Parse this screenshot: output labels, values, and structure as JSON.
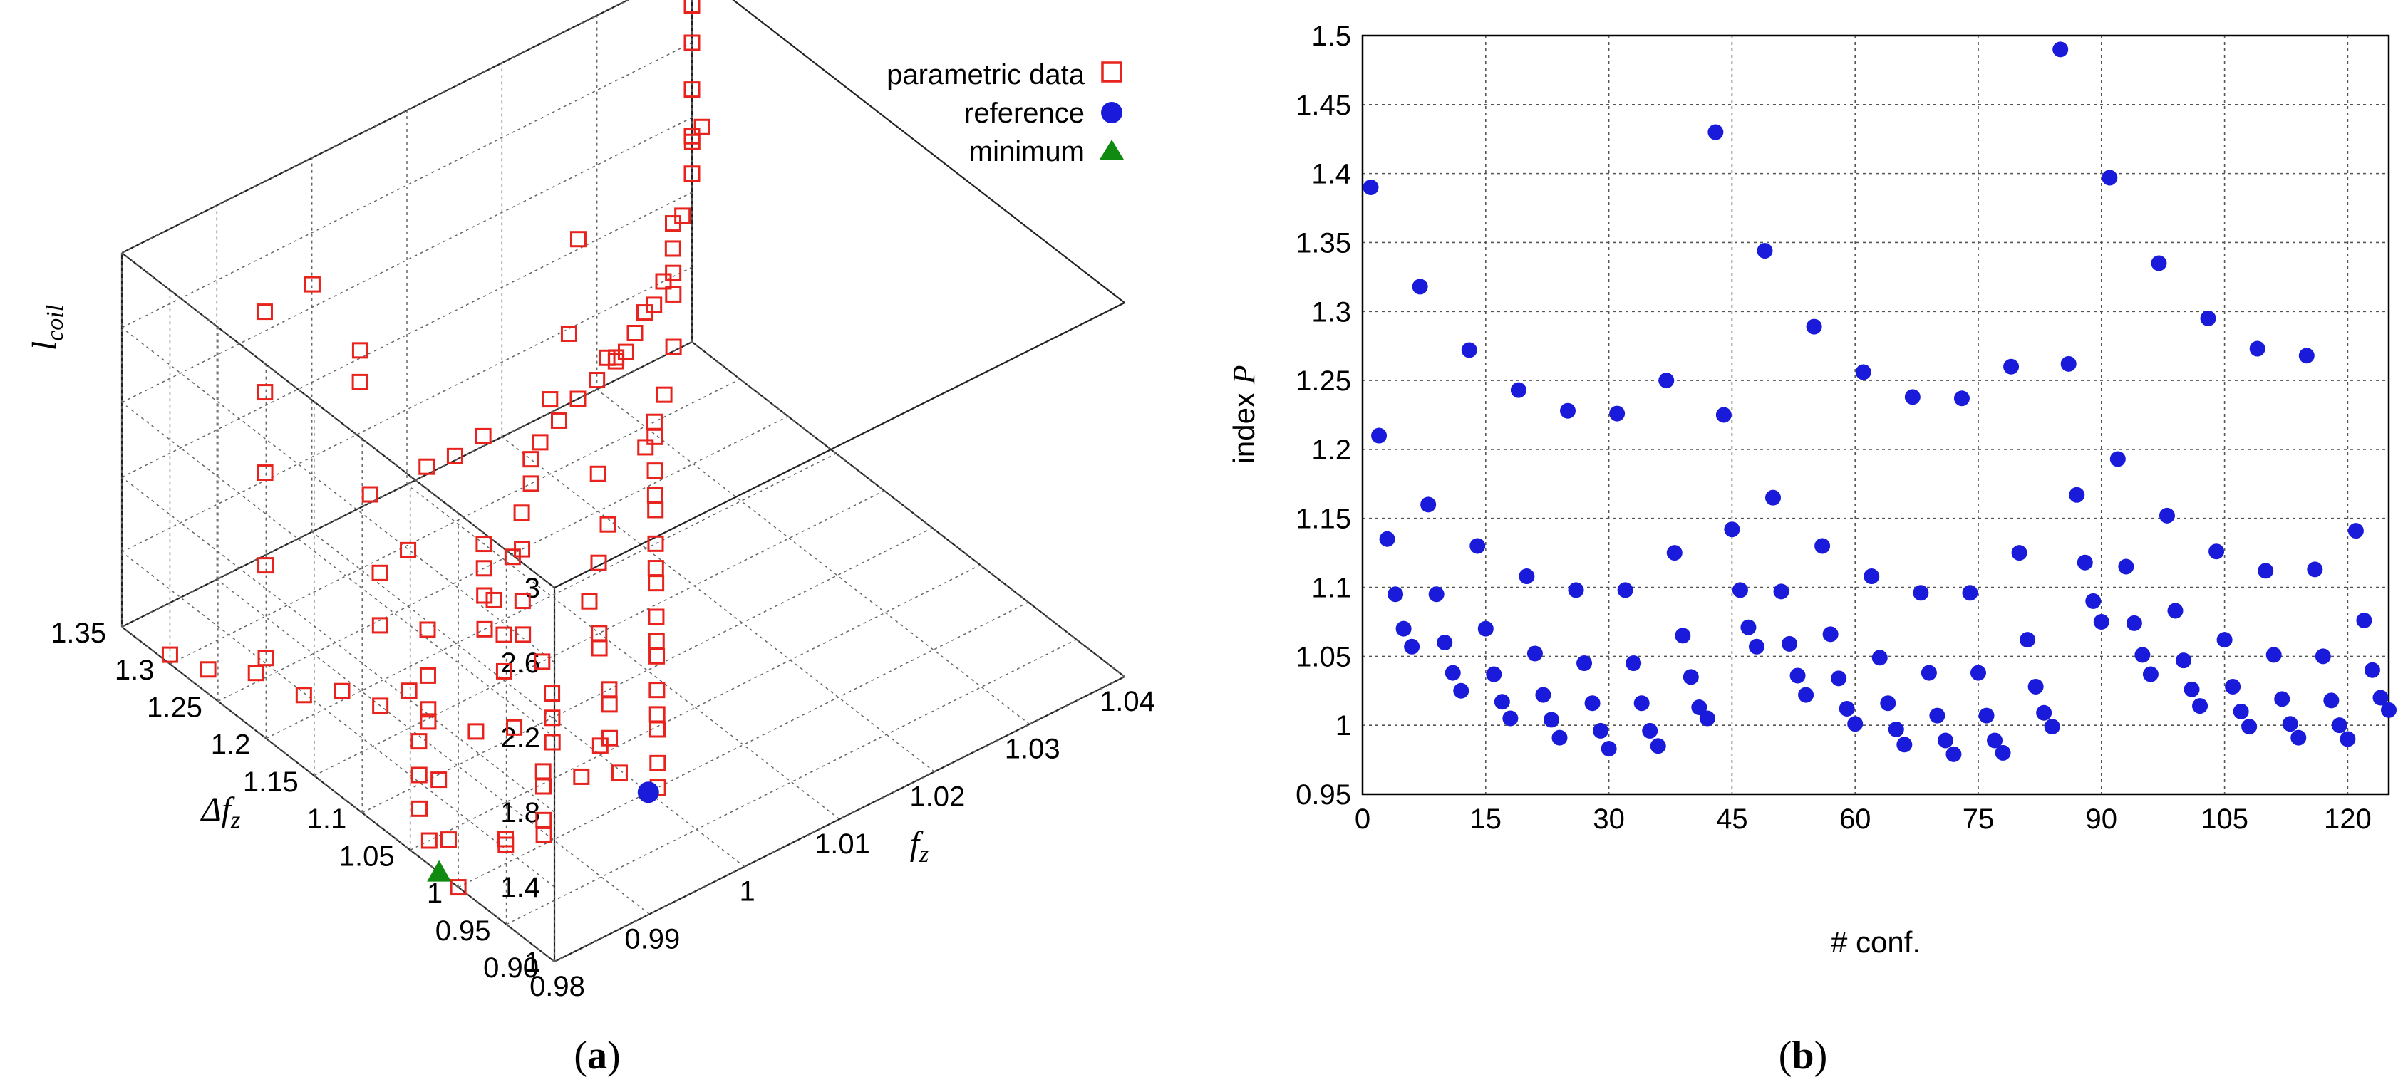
{
  "panels": {
    "a": "(a)",
    "b": "(b)"
  },
  "chart_data": [
    {
      "id": "a",
      "type": "scatter",
      "title": "",
      "projection": "3d",
      "xlabel": {
        "base": "f",
        "sub": "z"
      },
      "ylabel": {
        "base": "Δf",
        "sub": "z"
      },
      "zlabel": {
        "base": "l",
        "sub": "coil"
      },
      "xlim": [
        0.98,
        1.04
      ],
      "ylim": [
        0.9,
        1.35
      ],
      "zlim": [
        1,
        3
      ],
      "xticks": [
        "0.98",
        "0.99",
        "1",
        "1.01",
        "1.02",
        "1.03",
        "1.04"
      ],
      "yticks": [
        "0.90",
        "0.95",
        "1",
        "1.05",
        "1.1",
        "1.15",
        "1.2",
        "1.25",
        "1.3",
        "1.35"
      ],
      "zticks": [
        "1",
        "1.4",
        "1.8",
        "2.2",
        "2.6",
        "3"
      ],
      "legend": {
        "position": "top-right",
        "entries": [
          {
            "label": "parametric data",
            "marker": "open-square",
            "color": "#e8221c"
          },
          {
            "label": "reference",
            "marker": "circle",
            "color": "#1a1adb"
          },
          {
            "label": "minimum",
            "marker": "triangle",
            "color": "#108a10"
          }
        ]
      },
      "series": [
        {
          "name": "parametric data",
          "marker": "open-square",
          "color": "#e8221c",
          "points": [
            [
              1.0,
              1.1,
              1.0
            ],
            [
              1.002,
              1.12,
              1.0
            ],
            [
              1.004,
              1.15,
              1.0
            ],
            [
              1.005,
              1.18,
              1.0
            ],
            [
              1.003,
              1.2,
              1.0
            ],
            [
              1.006,
              1.22,
              1.0
            ],
            [
              1.008,
              1.25,
              1.0
            ],
            [
              1.01,
              1.27,
              1.0
            ],
            [
              1.0,
              1.15,
              1.05
            ],
            [
              1.003,
              1.18,
              1.05
            ],
            [
              1.005,
              1.22,
              1.05
            ],
            [
              1.007,
              1.2,
              1.05
            ],
            [
              1.01,
              1.24,
              1.05
            ],
            [
              1.012,
              1.25,
              1.0
            ],
            [
              1.015,
              1.28,
              1.0
            ],
            [
              1.018,
              1.3,
              1.0
            ],
            [
              1.02,
              1.32,
              1.0
            ],
            [
              1.022,
              1.33,
              1.0
            ],
            [
              1.025,
              1.34,
              1.0
            ],
            [
              1.028,
              1.35,
              1.0
            ],
            [
              1.03,
              1.35,
              1.05
            ],
            [
              1.032,
              1.35,
              1.1
            ],
            [
              1.034,
              1.35,
              1.2
            ],
            [
              1.036,
              1.35,
              1.3
            ],
            [
              1.037,
              1.35,
              1.4
            ],
            [
              1.038,
              1.35,
              1.55
            ],
            [
              1.039,
              1.35,
              1.7
            ],
            [
              1.04,
              1.35,
              1.9
            ],
            [
              1.04,
              1.35,
              2.1
            ],
            [
              1.04,
              1.35,
              2.35
            ],
            [
              1.04,
              1.35,
              2.6
            ],
            [
              1.04,
              1.35,
              2.8
            ],
            [
              1.038,
              1.33,
              2.2
            ],
            [
              1.036,
              1.3,
              2.45
            ],
            [
              1.035,
              1.32,
              1.5
            ],
            [
              1.033,
              1.3,
              1.35
            ],
            [
              1.03,
              1.28,
              1.25
            ],
            [
              1.028,
              1.3,
              1.45
            ],
            [
              1.025,
              1.32,
              2.05
            ],
            [
              1.022,
              1.3,
              1.7
            ],
            [
              1.02,
              1.25,
              1.2
            ],
            [
              1.018,
              1.22,
              1.1
            ],
            [
              1.015,
              1.2,
              1.05
            ],
            [
              1.012,
              1.18,
              1.0
            ],
            [
              1.01,
              1.15,
              1.0
            ],
            [
              1.008,
              1.13,
              1.05
            ],
            [
              1.006,
              1.1,
              1.0
            ],
            [
              1.004,
              1.08,
              1.05
            ],
            [
              1.002,
              1.06,
              1.0
            ],
            [
              1.0,
              1.05,
              1.05
            ],
            [
              0.998,
              1.08,
              1.0
            ],
            [
              0.996,
              1.1,
              1.05
            ],
            [
              0.994,
              1.12,
              1.0
            ],
            [
              0.992,
              1.15,
              1.05
            ],
            [
              0.99,
              1.18,
              1.0
            ],
            [
              0.988,
              1.2,
              1.05
            ],
            [
              0.986,
              1.22,
              1.0
            ],
            [
              0.984,
              1.25,
              1.05
            ],
            [
              0.982,
              1.28,
              1.0
            ],
            [
              0.98,
              1.3,
              1.05
            ],
            [
              0.982,
              1.22,
              1.3
            ],
            [
              0.985,
              1.25,
              1.6
            ],
            [
              0.988,
              1.28,
              1.9
            ],
            [
              0.99,
              1.3,
              2.2
            ],
            [
              0.992,
              1.32,
              2.5
            ],
            [
              0.995,
              1.3,
              2.65
            ],
            [
              0.998,
              1.28,
              2.3
            ],
            [
              1.0,
              1.3,
              2.0
            ],
            [
              0.996,
              1.25,
              1.7
            ],
            [
              0.994,
              1.22,
              1.45
            ],
            [
              0.992,
              1.2,
              1.3
            ],
            [
              0.99,
              1.15,
              1.2
            ],
            [
              0.988,
              1.12,
              1.1
            ],
            [
              0.986,
              1.1,
              1.05
            ],
            [
              0.984,
              1.08,
              1.0
            ],
            [
              0.982,
              1.05,
              1.0
            ],
            [
              0.98,
              1.0,
              1.0
            ],
            [
              0.981,
              1.02,
              1.15
            ],
            [
              0.983,
              1.05,
              1.3
            ],
            [
              0.985,
              1.0,
              1.1
            ],
            [
              0.987,
              1.02,
              1.0
            ],
            [
              0.989,
              1.0,
              1.05
            ],
            [
              0.991,
              1.02,
              1.0
            ],
            [
              0.993,
              1.04,
              1.05
            ],
            [
              0.995,
              1.06,
              1.0
            ],
            [
              0.997,
              1.04,
              1.0
            ],
            [
              0.999,
              1.02,
              1.05
            ],
            [
              1.001,
              1.0,
              1.0
            ],
            [
              1.003,
              1.02,
              1.0
            ],
            [
              1.005,
              1.04,
              1.05
            ],
            [
              1.007,
              1.06,
              1.0
            ],
            [
              1.009,
              1.08,
              1.0
            ],
            [
              1.011,
              1.1,
              1.05
            ],
            [
              1.013,
              1.12,
              1.0
            ],
            [
              1.015,
              1.14,
              1.0
            ],
            [
              1.017,
              1.16,
              1.05
            ],
            [
              1.019,
              1.18,
              1.0
            ],
            [
              1.021,
              1.2,
              1.0
            ],
            [
              1.023,
              1.22,
              1.05
            ],
            [
              1.025,
              1.24,
              1.0
            ],
            [
              1.027,
              1.26,
              1.0
            ],
            [
              1.029,
              1.28,
              1.05
            ],
            [
              1.031,
              1.3,
              1.0
            ],
            [
              1.024,
              1.28,
              1.6
            ],
            [
              1.02,
              1.3,
              1.4
            ],
            [
              1.015,
              1.32,
              1.25
            ],
            [
              1.01,
              1.3,
              1.35
            ],
            [
              1.005,
              1.28,
              1.5
            ],
            [
              1.0,
              1.25,
              1.3
            ],
            [
              0.997,
              1.2,
              1.15
            ],
            [
              0.994,
              1.17,
              1.1
            ],
            [
              0.991,
              1.14,
              1.05
            ],
            [
              1.026,
              1.26,
              1.15
            ],
            [
              1.03,
              1.33,
              1.25
            ],
            [
              1.034,
              1.34,
              1.35
            ],
            [
              1.036,
              1.33,
              1.55
            ],
            [
              1.037,
              1.34,
              1.75
            ]
          ]
        },
        {
          "name": "reference",
          "marker": "circle",
          "color": "#1a1adb",
          "points": [
            [
              1.0,
              1.0,
              1.0
            ]
          ]
        },
        {
          "name": "minimum",
          "marker": "triangle",
          "color": "#108a10",
          "points": [
            [
              0.98,
              1.02,
              1.0
            ]
          ]
        }
      ]
    },
    {
      "id": "b",
      "type": "scatter",
      "title": "",
      "xlabel": "# conf.",
      "ylabel": {
        "base": "index ",
        "var": "P"
      },
      "xlim": [
        0,
        125
      ],
      "ylim": [
        0.95,
        1.5
      ],
      "xticks": [
        "0",
        "15",
        "30",
        "45",
        "60",
        "75",
        "90",
        "105",
        "120"
      ],
      "yticks": [
        "0.95",
        "1",
        "1.05",
        "1.1",
        "1.15",
        "1.2",
        "1.25",
        "1.3",
        "1.35",
        "1.4",
        "1.45",
        "1.5"
      ],
      "grid": true,
      "series": [
        {
          "name": "index P",
          "marker": "circle",
          "color": "#1a1adb",
          "x": [
            1,
            2,
            3,
            4,
            5,
            6,
            7,
            8,
            9,
            10,
            11,
            12,
            13,
            14,
            15,
            16,
            17,
            18,
            19,
            20,
            21,
            22,
            23,
            24,
            25,
            26,
            27,
            28,
            29,
            30,
            31,
            32,
            33,
            34,
            35,
            36,
            37,
            38,
            39,
            40,
            41,
            42,
            43,
            44,
            45,
            46,
            47,
            48,
            49,
            50,
            51,
            52,
            53,
            54,
            55,
            56,
            57,
            58,
            59,
            60,
            61,
            62,
            63,
            64,
            65,
            66,
            67,
            68,
            69,
            70,
            71,
            72,
            73,
            74,
            75,
            76,
            77,
            78,
            79,
            80,
            81,
            82,
            83,
            84,
            85,
            86,
            87,
            88,
            89,
            90,
            91,
            92,
            93,
            94,
            95,
            96,
            97,
            98,
            99,
            100,
            101,
            102,
            103,
            104,
            105,
            106,
            107,
            108,
            109,
            110,
            111,
            112,
            113,
            114,
            115,
            116,
            117,
            118,
            119,
            120,
            121,
            122,
            123,
            124,
            125
          ],
          "y": [
            1.39,
            1.21,
            1.135,
            1.095,
            1.07,
            1.057,
            1.318,
            1.16,
            1.095,
            1.06,
            1.038,
            1.025,
            1.272,
            1.13,
            1.07,
            1.037,
            1.017,
            1.005,
            1.243,
            1.108,
            1.052,
            1.022,
            1.004,
            0.991,
            1.228,
            1.098,
            1.045,
            1.016,
            0.996,
            0.983,
            1.226,
            1.098,
            1.045,
            1.016,
            0.996,
            0.985,
            1.25,
            1.125,
            1.065,
            1.035,
            1.013,
            1.005,
            1.43,
            1.225,
            1.142,
            1.098,
            1.071,
            1.057,
            1.344,
            1.165,
            1.097,
            1.059,
            1.036,
            1.022,
            1.289,
            1.13,
            1.066,
            1.034,
            1.012,
            1.001,
            1.256,
            1.108,
            1.049,
            1.016,
            0.997,
            0.986,
            1.238,
            1.096,
            1.038,
            1.007,
            0.989,
            0.979,
            1.237,
            1.096,
            1.038,
            1.007,
            0.989,
            0.98,
            1.26,
            1.125,
            1.062,
            1.028,
            1.009,
            0.999,
            1.49,
            1.262,
            1.167,
            1.118,
            1.09,
            1.075,
            1.397,
            1.193,
            1.115,
            1.074,
            1.051,
            1.037,
            1.335,
            1.152,
            1.083,
            1.047,
            1.026,
            1.014,
            1.295,
            1.126,
            1.062,
            1.028,
            1.01,
            0.999,
            1.273,
            1.112,
            1.051,
            1.019,
            1.001,
            0.991,
            1.268,
            1.113,
            1.05,
            1.018,
            1.0,
            0.99,
            1.141,
            1.076,
            1.04,
            1.02,
            1.011
          ]
        }
      ]
    }
  ]
}
